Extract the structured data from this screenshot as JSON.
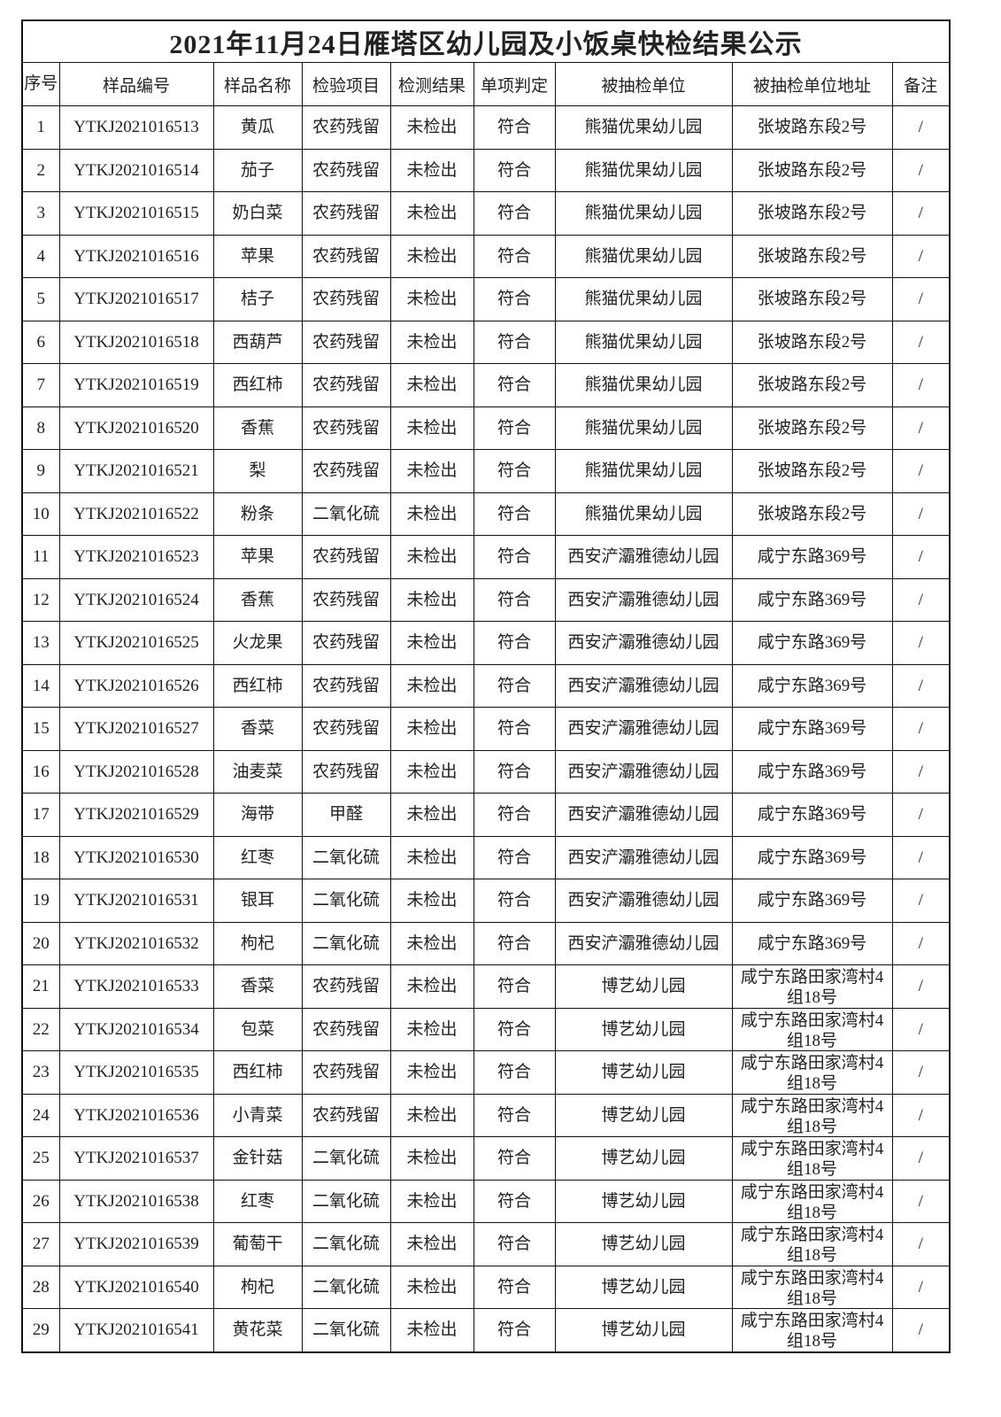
{
  "title": "2021年11月24日雁塔区幼儿园及小饭桌快检结果公示",
  "headers": [
    "序号",
    "样品编号",
    "样品名称",
    "检验项目",
    "检测结果",
    "单项判定",
    "被抽检单位",
    "被抽检单位地址",
    "备注"
  ],
  "rows": [
    [
      "1",
      "YTKJ2021016513",
      "黄瓜",
      "农药残留",
      "未检出",
      "符合",
      "熊猫优果幼儿园",
      "张坡路东段2号",
      "/"
    ],
    [
      "2",
      "YTKJ2021016514",
      "茄子",
      "农药残留",
      "未检出",
      "符合",
      "熊猫优果幼儿园",
      "张坡路东段2号",
      "/"
    ],
    [
      "3",
      "YTKJ2021016515",
      "奶白菜",
      "农药残留",
      "未检出",
      "符合",
      "熊猫优果幼儿园",
      "张坡路东段2号",
      "/"
    ],
    [
      "4",
      "YTKJ2021016516",
      "苹果",
      "农药残留",
      "未检出",
      "符合",
      "熊猫优果幼儿园",
      "张坡路东段2号",
      "/"
    ],
    [
      "5",
      "YTKJ2021016517",
      "桔子",
      "农药残留",
      "未检出",
      "符合",
      "熊猫优果幼儿园",
      "张坡路东段2号",
      "/"
    ],
    [
      "6",
      "YTKJ2021016518",
      "西葫芦",
      "农药残留",
      "未检出",
      "符合",
      "熊猫优果幼儿园",
      "张坡路东段2号",
      "/"
    ],
    [
      "7",
      "YTKJ2021016519",
      "西红柿",
      "农药残留",
      "未检出",
      "符合",
      "熊猫优果幼儿园",
      "张坡路东段2号",
      "/"
    ],
    [
      "8",
      "YTKJ2021016520",
      "香蕉",
      "农药残留",
      "未检出",
      "符合",
      "熊猫优果幼儿园",
      "张坡路东段2号",
      "/"
    ],
    [
      "9",
      "YTKJ2021016521",
      "梨",
      "农药残留",
      "未检出",
      "符合",
      "熊猫优果幼儿园",
      "张坡路东段2号",
      "/"
    ],
    [
      "10",
      "YTKJ2021016522",
      "粉条",
      "二氧化硫",
      "未检出",
      "符合",
      "熊猫优果幼儿园",
      "张坡路东段2号",
      "/"
    ],
    [
      "11",
      "YTKJ2021016523",
      "苹果",
      "农药残留",
      "未检出",
      "符合",
      "西安浐灞雅德幼儿园",
      "咸宁东路369号",
      "/"
    ],
    [
      "12",
      "YTKJ2021016524",
      "香蕉",
      "农药残留",
      "未检出",
      "符合",
      "西安浐灞雅德幼儿园",
      "咸宁东路369号",
      "/"
    ],
    [
      "13",
      "YTKJ2021016525",
      "火龙果",
      "农药残留",
      "未检出",
      "符合",
      "西安浐灞雅德幼儿园",
      "咸宁东路369号",
      "/"
    ],
    [
      "14",
      "YTKJ2021016526",
      "西红柿",
      "农药残留",
      "未检出",
      "符合",
      "西安浐灞雅德幼儿园",
      "咸宁东路369号",
      "/"
    ],
    [
      "15",
      "YTKJ2021016527",
      "香菜",
      "农药残留",
      "未检出",
      "符合",
      "西安浐灞雅德幼儿园",
      "咸宁东路369号",
      "/"
    ],
    [
      "16",
      "YTKJ2021016528",
      "油麦菜",
      "农药残留",
      "未检出",
      "符合",
      "西安浐灞雅德幼儿园",
      "咸宁东路369号",
      "/"
    ],
    [
      "17",
      "YTKJ2021016529",
      "海带",
      "甲醛",
      "未检出",
      "符合",
      "西安浐灞雅德幼儿园",
      "咸宁东路369号",
      "/"
    ],
    [
      "18",
      "YTKJ2021016530",
      "红枣",
      "二氧化硫",
      "未检出",
      "符合",
      "西安浐灞雅德幼儿园",
      "咸宁东路369号",
      "/"
    ],
    [
      "19",
      "YTKJ2021016531",
      "银耳",
      "二氧化硫",
      "未检出",
      "符合",
      "西安浐灞雅德幼儿园",
      "咸宁东路369号",
      "/"
    ],
    [
      "20",
      "YTKJ2021016532",
      "枸杞",
      "二氧化硫",
      "未检出",
      "符合",
      "西安浐灞雅德幼儿园",
      "咸宁东路369号",
      "/"
    ],
    [
      "21",
      "YTKJ2021016533",
      "香菜",
      "农药残留",
      "未检出",
      "符合",
      "博艺幼儿园",
      "咸宁东路田家湾村4组18号",
      "/"
    ],
    [
      "22",
      "YTKJ2021016534",
      "包菜",
      "农药残留",
      "未检出",
      "符合",
      "博艺幼儿园",
      "咸宁东路田家湾村4组18号",
      "/"
    ],
    [
      "23",
      "YTKJ2021016535",
      "西红柿",
      "农药残留",
      "未检出",
      "符合",
      "博艺幼儿园",
      "咸宁东路田家湾村4组18号",
      "/"
    ],
    [
      "24",
      "YTKJ2021016536",
      "小青菜",
      "农药残留",
      "未检出",
      "符合",
      "博艺幼儿园",
      "咸宁东路田家湾村4组18号",
      "/"
    ],
    [
      "25",
      "YTKJ2021016537",
      "金针菇",
      "二氧化硫",
      "未检出",
      "符合",
      "博艺幼儿园",
      "咸宁东路田家湾村4组18号",
      "/"
    ],
    [
      "26",
      "YTKJ2021016538",
      "红枣",
      "二氧化硫",
      "未检出",
      "符合",
      "博艺幼儿园",
      "咸宁东路田家湾村4组18号",
      "/"
    ],
    [
      "27",
      "YTKJ2021016539",
      "葡萄干",
      "二氧化硫",
      "未检出",
      "符合",
      "博艺幼儿园",
      "咸宁东路田家湾村4组18号",
      "/"
    ],
    [
      "28",
      "YTKJ2021016540",
      "枸杞",
      "二氧化硫",
      "未检出",
      "符合",
      "博艺幼儿园",
      "咸宁东路田家湾村4组18号",
      "/"
    ],
    [
      "29",
      "YTKJ2021016541",
      "黄花菜",
      "二氧化硫",
      "未检出",
      "符合",
      "博艺幼儿园",
      "咸宁东路田家湾村4组18号",
      "/"
    ]
  ]
}
